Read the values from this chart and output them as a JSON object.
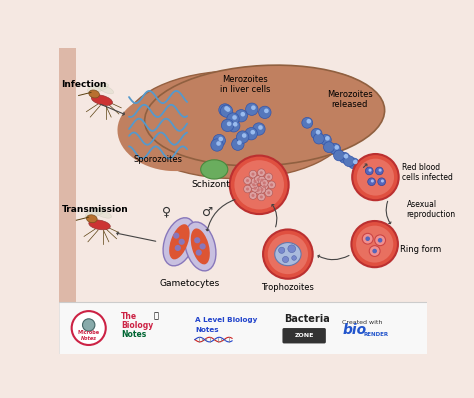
{
  "bg_color": "#f5e8e2",
  "left_bar_color": "#ddb8a8",
  "main_bg": "#f5e8e2",
  "labels": {
    "infection": "Infection",
    "transmission": "Transmission",
    "sporozoites": "Sporozoites",
    "merozoites_liver": "Merozoites\nin liver cells",
    "merozoites_released": "Merozoites\nreleased",
    "red_blood": "Red blood\ncells infected",
    "schizont": "Schizont",
    "asexual": "Asexual\nreproduction",
    "ring_form": "Ring form",
    "trophozoites": "Trophozoites",
    "gametocytes": "Gametocytes"
  },
  "liver_color": "#c08060",
  "liver_green": "#6aad5e",
  "rbc_outer": "#e05040",
  "rbc_mid": "#e87060",
  "arrow_color": "#444444",
  "mosq_body": "#b87030",
  "mosq_red": "#cc3333",
  "blue_dot": "#5577bb",
  "blue_dot_inner": "#99bbee"
}
